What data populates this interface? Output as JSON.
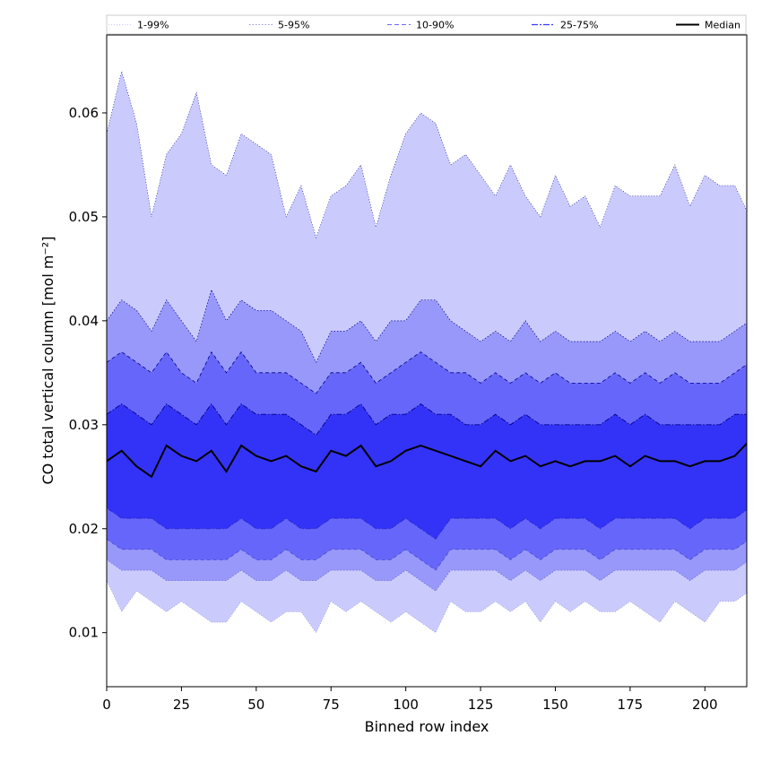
{
  "chart_data": {
    "type": "area",
    "title": "",
    "xlabel": "Binned row index",
    "ylabel": "CO total vertical column [mol m⁻²]",
    "xlim": [
      0,
      214
    ],
    "ylim": [
      0.0048,
      0.0675
    ],
    "xticks": [
      0,
      25,
      50,
      75,
      100,
      125,
      150,
      175,
      200
    ],
    "xtick_labels": [
      "0",
      "25",
      "50",
      "75",
      "100",
      "125",
      "150",
      "175",
      "200"
    ],
    "yticks": [
      0.01,
      0.02,
      0.03,
      0.04,
      0.05,
      0.06
    ],
    "ytick_labels": [
      "0.01",
      "0.02",
      "0.03",
      "0.04",
      "0.05",
      "0.06"
    ],
    "grid": false,
    "legend_position": "top",
    "colors": {
      "band_1_99": "#cacafd",
      "band_5_95": "#9898fb",
      "band_10_90": "#6666fa",
      "band_25_75": "#3333f7",
      "median": "#000000",
      "edge": "#00008b"
    },
    "legend": [
      {
        "label": "1-99%",
        "style": "thin-dotted"
      },
      {
        "label": "5-95%",
        "style": "dotted"
      },
      {
        "label": "10-90%",
        "style": "dashed"
      },
      {
        "label": "25-75%",
        "style": "dashdot"
      },
      {
        "label": "Median",
        "style": "solid"
      }
    ],
    "x_start": 0,
    "x_step": 5,
    "series": [
      {
        "name": "1-99%",
        "upper": [
          0.058,
          0.064,
          0.059,
          0.05,
          0.056,
          0.058,
          0.062,
          0.055,
          0.054,
          0.058,
          0.057,
          0.056,
          0.05,
          0.053,
          0.048,
          0.052,
          0.053,
          0.055,
          0.049,
          0.054,
          0.058,
          0.06,
          0.059,
          0.055,
          0.056,
          0.054,
          0.052,
          0.055,
          0.052,
          0.05,
          0.054,
          0.051,
          0.052,
          0.049,
          0.053,
          0.052,
          0.052,
          0.052,
          0.055,
          0.051,
          0.054,
          0.053,
          0.053,
          0.05
        ],
        "lower": [
          0.015,
          0.012,
          0.014,
          0.013,
          0.012,
          0.013,
          0.012,
          0.011,
          0.011,
          0.013,
          0.012,
          0.011,
          0.012,
          0.012,
          0.01,
          0.013,
          0.012,
          0.013,
          0.012,
          0.011,
          0.012,
          0.011,
          0.01,
          0.013,
          0.012,
          0.012,
          0.013,
          0.012,
          0.013,
          0.011,
          0.013,
          0.012,
          0.013,
          0.012,
          0.012,
          0.013,
          0.012,
          0.011,
          0.013,
          0.012,
          0.011,
          0.013,
          0.013,
          0.014
        ]
      },
      {
        "name": "5-95%",
        "upper": [
          0.04,
          0.042,
          0.041,
          0.039,
          0.042,
          0.04,
          0.038,
          0.043,
          0.04,
          0.042,
          0.041,
          0.041,
          0.04,
          0.039,
          0.036,
          0.039,
          0.039,
          0.04,
          0.038,
          0.04,
          0.04,
          0.042,
          0.042,
          0.04,
          0.039,
          0.038,
          0.039,
          0.038,
          0.04,
          0.038,
          0.039,
          0.038,
          0.038,
          0.038,
          0.039,
          0.038,
          0.039,
          0.038,
          0.039,
          0.038,
          0.038,
          0.038,
          0.039,
          0.04
        ],
        "lower": [
          0.017,
          0.016,
          0.016,
          0.016,
          0.015,
          0.015,
          0.015,
          0.015,
          0.015,
          0.016,
          0.015,
          0.015,
          0.016,
          0.015,
          0.015,
          0.016,
          0.016,
          0.016,
          0.015,
          0.015,
          0.016,
          0.015,
          0.014,
          0.016,
          0.016,
          0.016,
          0.016,
          0.015,
          0.016,
          0.015,
          0.016,
          0.016,
          0.016,
          0.015,
          0.016,
          0.016,
          0.016,
          0.016,
          0.016,
          0.015,
          0.016,
          0.016,
          0.016,
          0.017
        ]
      },
      {
        "name": "10-90%",
        "upper": [
          0.036,
          0.037,
          0.036,
          0.035,
          0.037,
          0.035,
          0.034,
          0.037,
          0.035,
          0.037,
          0.035,
          0.035,
          0.035,
          0.034,
          0.033,
          0.035,
          0.035,
          0.036,
          0.034,
          0.035,
          0.036,
          0.037,
          0.036,
          0.035,
          0.035,
          0.034,
          0.035,
          0.034,
          0.035,
          0.034,
          0.035,
          0.034,
          0.034,
          0.034,
          0.035,
          0.034,
          0.035,
          0.034,
          0.035,
          0.034,
          0.034,
          0.034,
          0.035,
          0.036
        ],
        "lower": [
          0.019,
          0.018,
          0.018,
          0.018,
          0.017,
          0.017,
          0.017,
          0.017,
          0.017,
          0.018,
          0.017,
          0.017,
          0.018,
          0.017,
          0.017,
          0.018,
          0.018,
          0.018,
          0.017,
          0.017,
          0.018,
          0.017,
          0.016,
          0.018,
          0.018,
          0.018,
          0.018,
          0.017,
          0.018,
          0.017,
          0.018,
          0.018,
          0.018,
          0.017,
          0.018,
          0.018,
          0.018,
          0.018,
          0.018,
          0.017,
          0.018,
          0.018,
          0.018,
          0.019
        ]
      },
      {
        "name": "25-75%",
        "upper": [
          0.031,
          0.032,
          0.031,
          0.03,
          0.032,
          0.031,
          0.03,
          0.032,
          0.03,
          0.032,
          0.031,
          0.031,
          0.031,
          0.03,
          0.029,
          0.031,
          0.031,
          0.032,
          0.03,
          0.031,
          0.031,
          0.032,
          0.031,
          0.031,
          0.03,
          0.03,
          0.031,
          0.03,
          0.031,
          0.03,
          0.03,
          0.03,
          0.03,
          0.03,
          0.031,
          0.03,
          0.031,
          0.03,
          0.03,
          0.03,
          0.03,
          0.03,
          0.031,
          0.031
        ],
        "lower": [
          0.022,
          0.021,
          0.021,
          0.021,
          0.02,
          0.02,
          0.02,
          0.02,
          0.02,
          0.021,
          0.02,
          0.02,
          0.021,
          0.02,
          0.02,
          0.021,
          0.021,
          0.021,
          0.02,
          0.02,
          0.021,
          0.02,
          0.019,
          0.021,
          0.021,
          0.021,
          0.021,
          0.02,
          0.021,
          0.02,
          0.021,
          0.021,
          0.021,
          0.02,
          0.021,
          0.021,
          0.021,
          0.021,
          0.021,
          0.02,
          0.021,
          0.021,
          0.021,
          0.022
        ]
      },
      {
        "name": "Median",
        "values": [
          0.0265,
          0.0275,
          0.026,
          0.025,
          0.028,
          0.027,
          0.0265,
          0.0275,
          0.0255,
          0.028,
          0.027,
          0.0265,
          0.027,
          0.026,
          0.0255,
          0.0275,
          0.027,
          0.028,
          0.026,
          0.0265,
          0.0275,
          0.028,
          0.0275,
          0.027,
          0.0265,
          0.026,
          0.0275,
          0.0265,
          0.027,
          0.026,
          0.0265,
          0.026,
          0.0265,
          0.0265,
          0.027,
          0.026,
          0.027,
          0.0265,
          0.0265,
          0.026,
          0.0265,
          0.0265,
          0.027,
          0.0285
        ]
      }
    ]
  }
}
